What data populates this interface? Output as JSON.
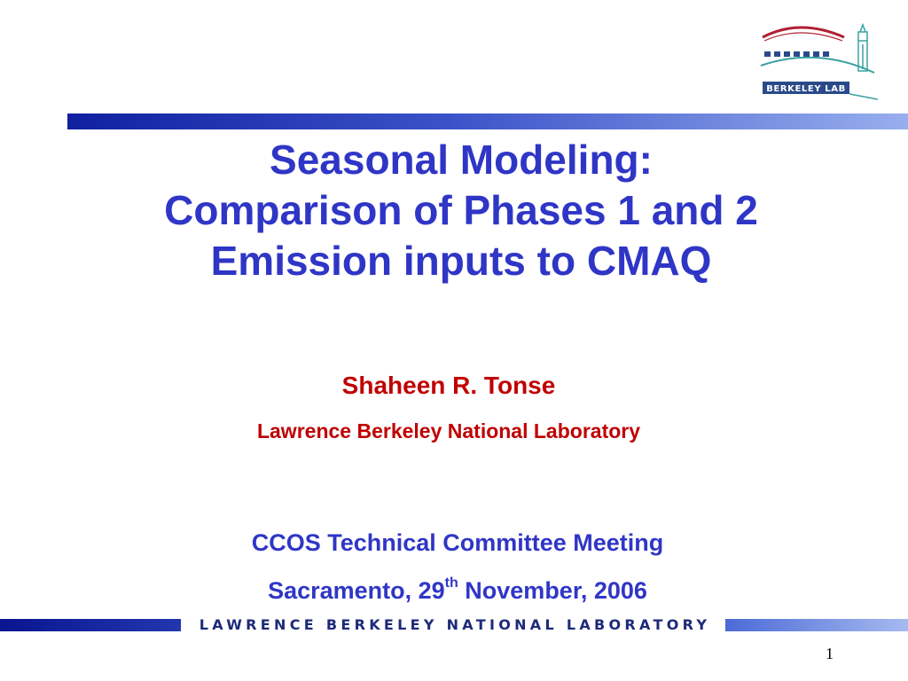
{
  "slide": {
    "title_lines": [
      "Seasonal Modeling:",
      "Comparison of Phases 1 and 2",
      "Emission inputs to CMAQ"
    ],
    "author": "Shaheen R. Tonse",
    "affiliation": "Lawrence Berkeley National Laboratory",
    "meeting": "CCOS Technical Committee Meeting",
    "venue": {
      "prefix": "Sacramento,  29",
      "superscript": "th",
      "suffix": " November,  2006"
    }
  },
  "logo": {
    "text": "BERKELEY LAB",
    "icon": "berkeley-lab-logo",
    "colors": {
      "arc": "#b02030",
      "text_band": "#2a4a8a",
      "tower": "#3aa0a0"
    }
  },
  "footer": {
    "lab_name": "LAWRENCE BERKELEY NATIONAL LABORATORY",
    "page_number": "1"
  },
  "colors": {
    "title": "#2f36c6",
    "author": "#c00000",
    "bar_dark": "#1020a0",
    "bar_light": "#98aeee"
  }
}
